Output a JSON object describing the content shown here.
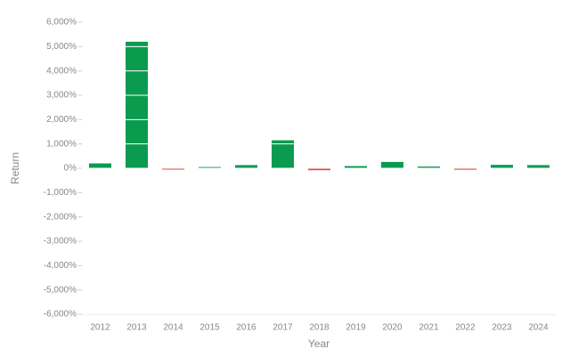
{
  "chart_data": {
    "type": "bar",
    "x_label": "Year",
    "y_label": "Return",
    "categories": [
      "2012",
      "2013",
      "2014",
      "2015",
      "2016",
      "2017",
      "2018",
      "2019",
      "2020",
      "2021",
      "2022",
      "2023",
      "2024"
    ],
    "values": [
      200,
      5200,
      -50,
      50,
      130,
      1150,
      -80,
      90,
      260,
      70,
      -60,
      140,
      130
    ],
    "positive_color": "#0b9b4f",
    "negative_color": "#e0483a",
    "ylim": [
      -6000,
      6000
    ],
    "yticks": [
      {
        "value": -6000,
        "label": "-6,000%"
      },
      {
        "value": -5000,
        "label": "-5,000%"
      },
      {
        "value": -4000,
        "label": "-4,000%"
      },
      {
        "value": -3000,
        "label": "-3,000%"
      },
      {
        "value": -2000,
        "label": "-2,000%"
      },
      {
        "value": -1000,
        "label": "-1,000%"
      },
      {
        "value": 0,
        "label": "0%"
      },
      {
        "value": 1000,
        "label": "1,000%"
      },
      {
        "value": 2000,
        "label": "2,000%"
      },
      {
        "value": 3000,
        "label": "3,000%"
      },
      {
        "value": 4000,
        "label": "4,000%"
      },
      {
        "value": 5000,
        "label": "5,000%"
      },
      {
        "value": 6000,
        "label": "6,000%"
      }
    ],
    "grid": true
  }
}
